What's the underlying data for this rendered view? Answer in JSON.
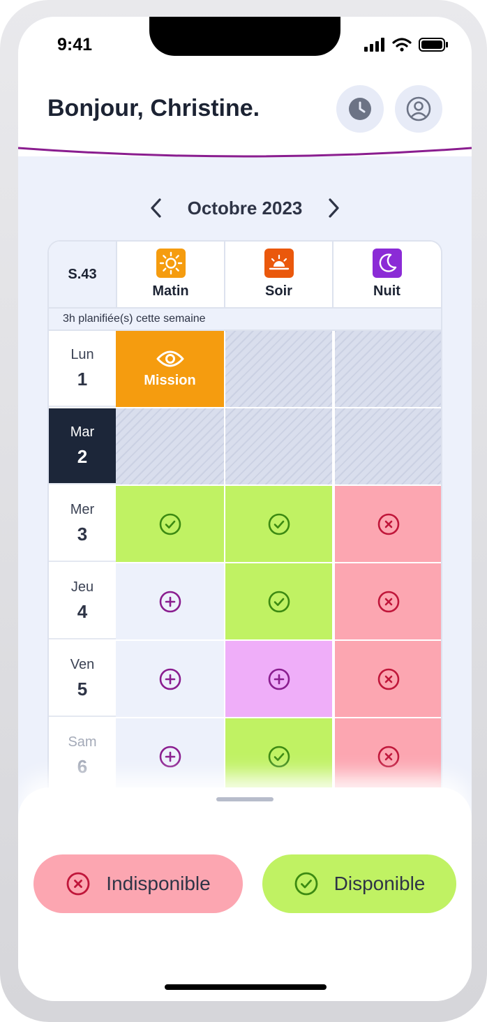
{
  "status_bar": {
    "time": "9:41"
  },
  "header": {
    "greeting": "Bonjour, Christine.",
    "history_icon": "clock-icon",
    "profile_icon": "user-icon"
  },
  "month_nav": {
    "label": "Octobre 2023"
  },
  "week": {
    "label": "S.43",
    "planned": "3h planifiée(s) cette semaine",
    "shifts": [
      {
        "label": "Matin",
        "icon": "sun-icon",
        "color": "#f59c0f"
      },
      {
        "label": "Soir",
        "icon": "sunset-icon",
        "color": "#ea580c"
      },
      {
        "label": "Nuit",
        "icon": "moon-icon",
        "color": "#8b2bd6"
      }
    ]
  },
  "days": [
    {
      "name": "Lun",
      "num": "1",
      "cells": [
        "mission",
        "blocked",
        "blocked"
      ]
    },
    {
      "name": "Mar",
      "num": "2",
      "cells": [
        "blocked",
        "blocked",
        "blocked"
      ]
    },
    {
      "name": "Mer",
      "num": "3",
      "cells": [
        "available",
        "available",
        "unavailable"
      ]
    },
    {
      "name": "Jeu",
      "num": "4",
      "cells": [
        "empty",
        "available",
        "unavailable"
      ]
    },
    {
      "name": "Ven",
      "num": "5",
      "cells": [
        "empty",
        "selected",
        "unavailable"
      ]
    },
    {
      "name": "Sam",
      "num": "6",
      "cells": [
        "empty",
        "available",
        "unavailable"
      ]
    }
  ],
  "mission_label": "Mission",
  "colors": {
    "available": "#c0f263",
    "unavailable": "#fca6b1",
    "selected": "#efaef9",
    "mission": "#f59c0f",
    "accent": "#8a1d8f",
    "today": "#1c2639"
  },
  "actions": {
    "unavailable": "Indisponible",
    "available": "Disponible"
  }
}
